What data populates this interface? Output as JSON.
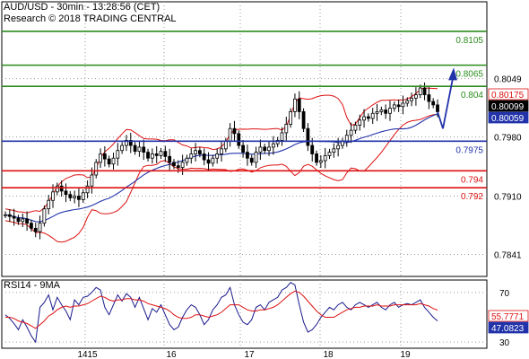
{
  "header": {
    "line1": "AUD/USD - 30min - 13:28:56 (CET)",
    "line2": "Research © 2018 TRADING CENTRAL"
  },
  "rsi_label": "RSI14 - 9MA",
  "colors": {
    "resistance": "#2a8c1c",
    "pivot": "#2233aa",
    "support": "#dd1111",
    "price": "#000000",
    "bollinger": "#dd1111",
    "ma": "#2233aa",
    "rsi": "#1a1a8c",
    "rsi_ma": "#dd1111",
    "arrow": "#2233aa",
    "grid": "#9a9a9a"
  },
  "chart_data": [
    {
      "type": "candlestick",
      "title": "AUD/USD - 30min - 13:28:56 (CET)",
      "subtitle": "Research © 2018 TRADING CENTRAL",
      "ylim": [
        0.7815,
        0.814
      ],
      "yticks": [
        "0.8049",
        "0.7980",
        "0.7910",
        "0.7841"
      ],
      "xticks": [
        "14",
        "15",
        "16",
        "17",
        "18",
        "19"
      ],
      "grid": true,
      "levels": [
        {
          "value": 0.8105,
          "label": "0.8105",
          "kind": "resistance"
        },
        {
          "value": 0.8065,
          "label": "0.8065",
          "kind": "resistance"
        },
        {
          "value": 0.804,
          "label": "0.804",
          "kind": "resistance"
        },
        {
          "value": 0.7975,
          "label": "0.7975",
          "kind": "pivot"
        },
        {
          "value": 0.794,
          "label": "0.794",
          "kind": "support"
        },
        {
          "value": 0.792,
          "label": "0.792",
          "kind": "support"
        }
      ],
      "price_badges": [
        {
          "value": 0.80175,
          "label": "0.80175",
          "style": "red"
        },
        {
          "value": 0.80099,
          "label": "0.80099",
          "style": "black"
        },
        {
          "value": 0.80059,
          "label": "0.80059",
          "style": "blue"
        }
      ],
      "close_series": [
        0.7888,
        0.7886,
        0.7884,
        0.788,
        0.7883,
        0.7878,
        0.7872,
        0.7868,
        0.7878,
        0.7895,
        0.7905,
        0.7915,
        0.7922,
        0.7916,
        0.7912,
        0.7908,
        0.791,
        0.7906,
        0.7914,
        0.7922,
        0.7935,
        0.795,
        0.796,
        0.7954,
        0.7948,
        0.7955,
        0.7964,
        0.797,
        0.7976,
        0.797,
        0.7963,
        0.7968,
        0.7962,
        0.7955,
        0.796,
        0.7958,
        0.7963,
        0.7957,
        0.795,
        0.7946,
        0.7944,
        0.795,
        0.7955,
        0.796,
        0.7964,
        0.796,
        0.7953,
        0.7949,
        0.7955,
        0.796,
        0.7966,
        0.7975,
        0.799,
        0.7984,
        0.797,
        0.7962,
        0.7955,
        0.795,
        0.7962,
        0.7968,
        0.7964,
        0.7968,
        0.7972,
        0.7976,
        0.7985,
        0.7995,
        0.801,
        0.8025,
        0.801,
        0.799,
        0.797,
        0.796,
        0.795,
        0.7952,
        0.7958,
        0.7962,
        0.7966,
        0.797,
        0.7975,
        0.7982,
        0.7988,
        0.7994,
        0.8,
        0.8004,
        0.8002,
        0.8008,
        0.801,
        0.8012,
        0.8008,
        0.8014,
        0.8018,
        0.8016,
        0.802,
        0.8023,
        0.8026,
        0.803,
        0.8038,
        0.803,
        0.8022,
        0.8018,
        0.80099
      ],
      "projection": {
        "to_value": 0.806,
        "from_value": 0.799
      }
    },
    {
      "type": "line",
      "title": "RSI14 - 9MA",
      "ylim": [
        25,
        80
      ],
      "yticks": [
        "70",
        "30"
      ],
      "series": [
        {
          "name": "RSI14",
          "values": [
            52,
            49,
            45,
            40,
            48,
            42,
            35,
            30,
            58,
            62,
            68,
            56,
            66,
            60,
            55,
            48,
            64,
            60,
            66,
            67,
            70,
            74,
            72,
            58,
            52,
            60,
            68,
            63,
            69,
            66,
            58,
            66,
            57,
            48,
            57,
            54,
            60,
            52,
            44,
            40,
            42,
            50,
            56,
            60,
            58,
            52,
            44,
            48,
            56,
            60,
            66,
            68,
            74,
            60,
            52,
            46,
            44,
            48,
            58,
            60,
            56,
            62,
            64,
            66,
            72,
            74,
            78,
            76,
            60,
            46,
            38,
            40,
            44,
            50,
            54,
            58,
            56,
            60,
            62,
            58,
            56,
            60,
            62,
            60,
            58,
            60,
            62,
            58,
            56,
            60,
            62,
            58,
            60,
            61,
            60,
            62,
            64,
            58,
            54,
            50,
            47
          ]
        },
        {
          "name": "9MA",
          "values": [
            50,
            50,
            49,
            47,
            46,
            45,
            43,
            41,
            44,
            47,
            51,
            53,
            56,
            58,
            59,
            58,
            59,
            59,
            60,
            61,
            63,
            65,
            67,
            66,
            64,
            63,
            64,
            64,
            65,
            65,
            64,
            64,
            63,
            61,
            60,
            59,
            58,
            57,
            55,
            52,
            50,
            49,
            49,
            50,
            52,
            52,
            51,
            50,
            51,
            52,
            54,
            57,
            60,
            60,
            60,
            58,
            56,
            55,
            55,
            56,
            56,
            57,
            58,
            60,
            63,
            66,
            69,
            71,
            70,
            67,
            63,
            59,
            55,
            52,
            50,
            50,
            50,
            52,
            54,
            56,
            57,
            58,
            58,
            59,
            59,
            59,
            60,
            59,
            59,
            59,
            60,
            60,
            60,
            60,
            60,
            60,
            61,
            60,
            59,
            57,
            55.7771
          ]
        }
      ],
      "badges": [
        {
          "value": 55.7771,
          "label": "55.7771",
          "style": "red"
        },
        {
          "value": 47.0823,
          "label": "47.0823",
          "style": "blue"
        }
      ]
    }
  ]
}
